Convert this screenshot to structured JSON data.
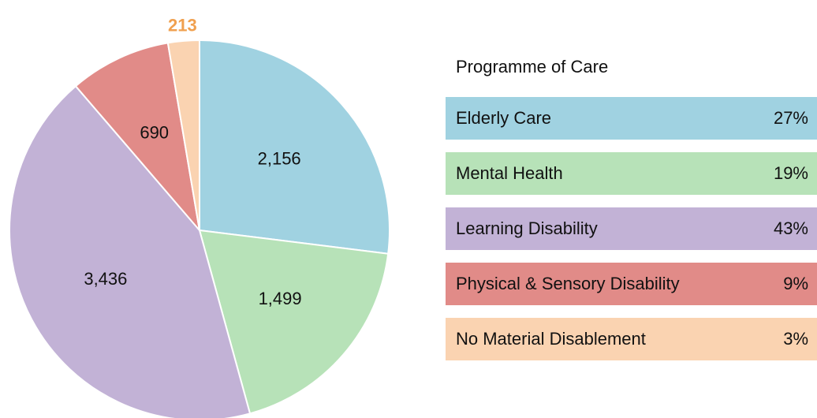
{
  "chart_data": {
    "type": "pie",
    "legend_title": "Programme of Care",
    "categories": [
      "Elderly Care",
      "Mental Health",
      "Learning Disability",
      "Physical & Sensory Disability",
      "No Material Disablement"
    ],
    "values": [
      2156,
      1499,
      3436,
      690,
      213
    ],
    "value_labels": [
      "2,156",
      "1,499",
      "3,436",
      "690",
      "213"
    ],
    "shares": [
      "27%",
      "19%",
      "43%",
      "9%",
      "3%"
    ],
    "colors": [
      "#a0d2e1",
      "#b7e2b8",
      "#c2b2d6",
      "#e18b88",
      "#fad3b1"
    ],
    "outside_label_color": "#f0a04f",
    "legend": "right"
  }
}
